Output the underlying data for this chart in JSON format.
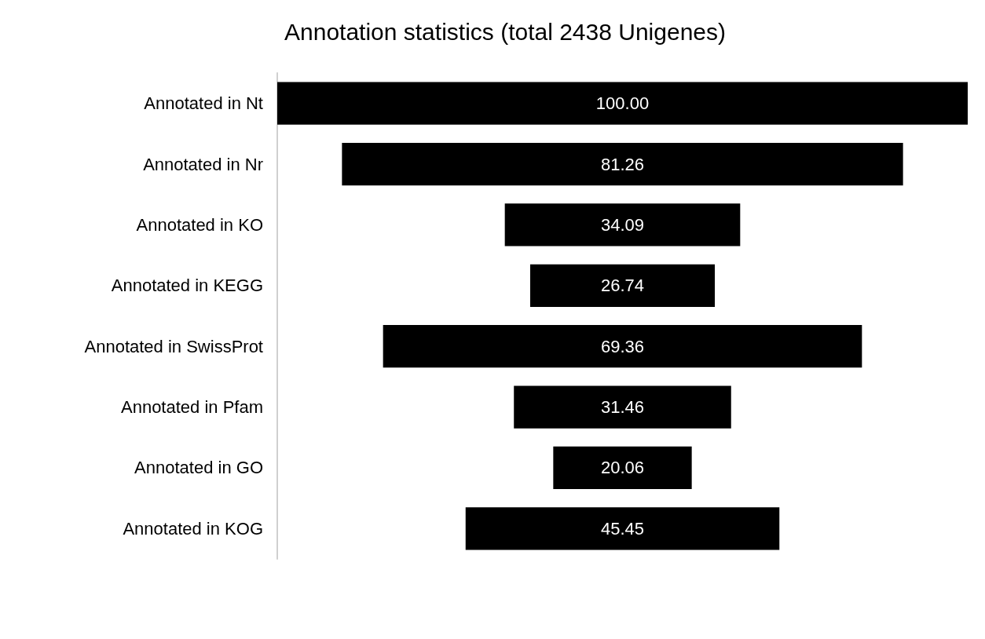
{
  "chart_data": {
    "type": "other",
    "title": "Annotation statistics (total 2438 Unigenes)",
    "categories": [
      "Annotated in Nt",
      "Annotated in Nr",
      "Annotated in KO",
      "Annotated in KEGG",
      "Annotated in SwissProt",
      "Annotated in Pfam",
      "Annotated in GO",
      "Annotated in KOG"
    ],
    "values": [
      100.0,
      81.26,
      34.09,
      26.74,
      69.36,
      31.46,
      20.06,
      45.45
    ],
    "value_labels": [
      "100.00",
      "81.26",
      "34.09",
      "26.74",
      "69.36",
      "31.46",
      "20.06",
      "45.45"
    ],
    "color": "#000000"
  }
}
